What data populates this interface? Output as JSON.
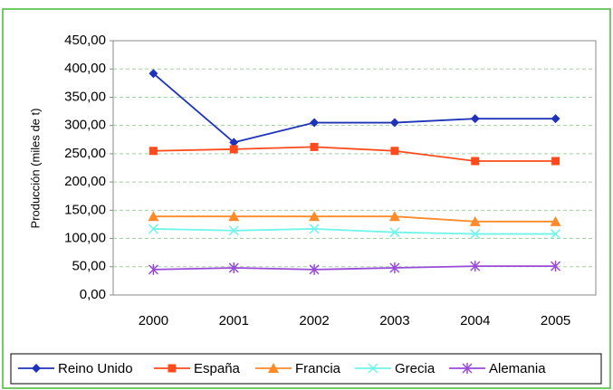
{
  "chart_data": {
    "type": "line",
    "y_label": "Producción (miles de t)",
    "categories": [
      "2000",
      "2001",
      "2002",
      "2003",
      "2004",
      "2005"
    ],
    "series": [
      {
        "name": "Reino Unido",
        "color": "#1f33b8",
        "marker": "diamond",
        "values": [
          392,
          270,
          305,
          305,
          312,
          312
        ]
      },
      {
        "name": "España",
        "color": "#ff4a1c",
        "marker": "square",
        "values": [
          255,
          258,
          262,
          255,
          237,
          237
        ]
      },
      {
        "name": "Francia",
        "color": "#ff8a2a",
        "marker": "triangle",
        "values": [
          139,
          139,
          139,
          139,
          130,
          130
        ]
      },
      {
        "name": "Grecia",
        "color": "#6ff5ea",
        "marker": "x",
        "values": [
          117,
          114,
          117,
          111,
          108,
          108
        ]
      },
      {
        "name": "Alemania",
        "color": "#9a4ad8",
        "marker": "star",
        "values": [
          45,
          48,
          45,
          48,
          51,
          51
        ]
      }
    ],
    "ylim": [
      0,
      450
    ],
    "yticks": [
      {
        "value": 0,
        "label": "0,00"
      },
      {
        "value": 50,
        "label": "50,00"
      },
      {
        "value": 100,
        "label": "100,00"
      },
      {
        "value": 150,
        "label": "150,00"
      },
      {
        "value": 200,
        "label": "200,00"
      },
      {
        "value": 250,
        "label": "250,00"
      },
      {
        "value": 300,
        "label": "300,00"
      },
      {
        "value": 350,
        "label": "350,00"
      },
      {
        "value": 400,
        "label": "400,00"
      },
      {
        "value": 450,
        "label": "450,00"
      }
    ],
    "grid": true,
    "legend": "bottom"
  }
}
